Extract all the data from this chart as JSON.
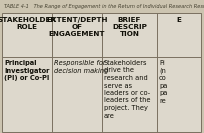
{
  "title": "TABLE 4-1   The Range of Engagement in the Return of Individual Research Results",
  "title_fontsize": 3.6,
  "bg_color": "#ccc4b0",
  "table_bg": "#ddd8cc",
  "header_bg": "#ddd8cc",
  "col_headers": [
    "STAKEHOLDER\nROLE",
    "EXTENT/DEPTH\nOF\nENGAGEMENT",
    "BRIEF\nDESCRIP\nTION",
    "E"
  ],
  "row0": [
    "Principal\nInvestigator\n(PI) or Co-PI",
    "Responsible for\ndecision making",
    "Stakeholders\ndrive the\nresearch and\nserve as\nleaders or co-\nleaders of the\nproject. They\nare",
    "Pi\n(n\nco\npa\npa\nre"
  ],
  "header_fontsize": 5.2,
  "cell_fontsize": 4.8,
  "border_color": "#7a7060",
  "text_color": "#111008",
  "title_color": "#444030"
}
